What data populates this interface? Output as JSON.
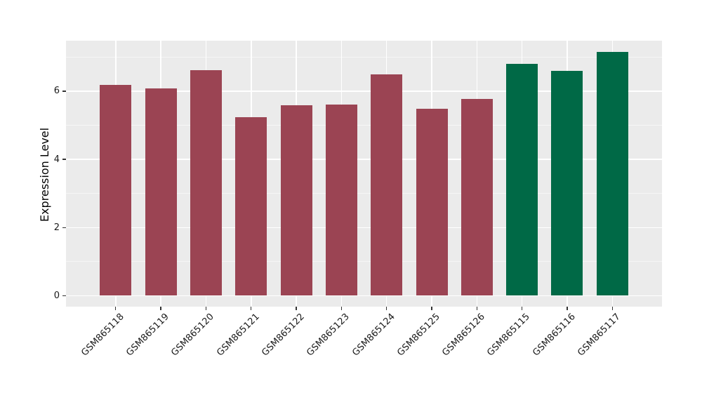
{
  "chart_data": {
    "type": "bar",
    "title": "",
    "xlabel": "",
    "ylabel": "Expression Level",
    "categories": [
      "GSM865118",
      "GSM865119",
      "GSM865120",
      "GSM865121",
      "GSM865122",
      "GSM865123",
      "GSM865124",
      "GSM865125",
      "GSM865126",
      "GSM865115",
      "GSM865116",
      "GSM865117"
    ],
    "values": [
      6.18,
      6.08,
      6.62,
      5.24,
      5.59,
      5.61,
      6.5,
      5.48,
      5.77,
      6.8,
      6.6,
      7.16
    ],
    "bar_colors": [
      "#9B4453",
      "#9B4453",
      "#9B4453",
      "#9B4453",
      "#9B4453",
      "#9B4453",
      "#9B4453",
      "#9B4453",
      "#9B4453",
      "#006946",
      "#006946",
      "#006946"
    ],
    "ylim": [
      -0.32,
      7.48
    ],
    "yticks": [
      0,
      2,
      4,
      6
    ],
    "yticks_minor": [
      1,
      3,
      5,
      7
    ],
    "x_tick_rotation_deg": 45,
    "grid": "major and minor, white on gray panel",
    "legend": "none",
    "colors": {
      "panel_background": "#EBEBEB",
      "gridline_major": "#FFFFFF",
      "gridline_minor": "#FFFFFF",
      "tick_mark": "#333333",
      "tick_text": "#1a1a1a",
      "axis_title_text": "#000000",
      "figure_background": "#FFFFFF",
      "bar_red": "#9B4453",
      "bar_green": "#006946"
    }
  }
}
